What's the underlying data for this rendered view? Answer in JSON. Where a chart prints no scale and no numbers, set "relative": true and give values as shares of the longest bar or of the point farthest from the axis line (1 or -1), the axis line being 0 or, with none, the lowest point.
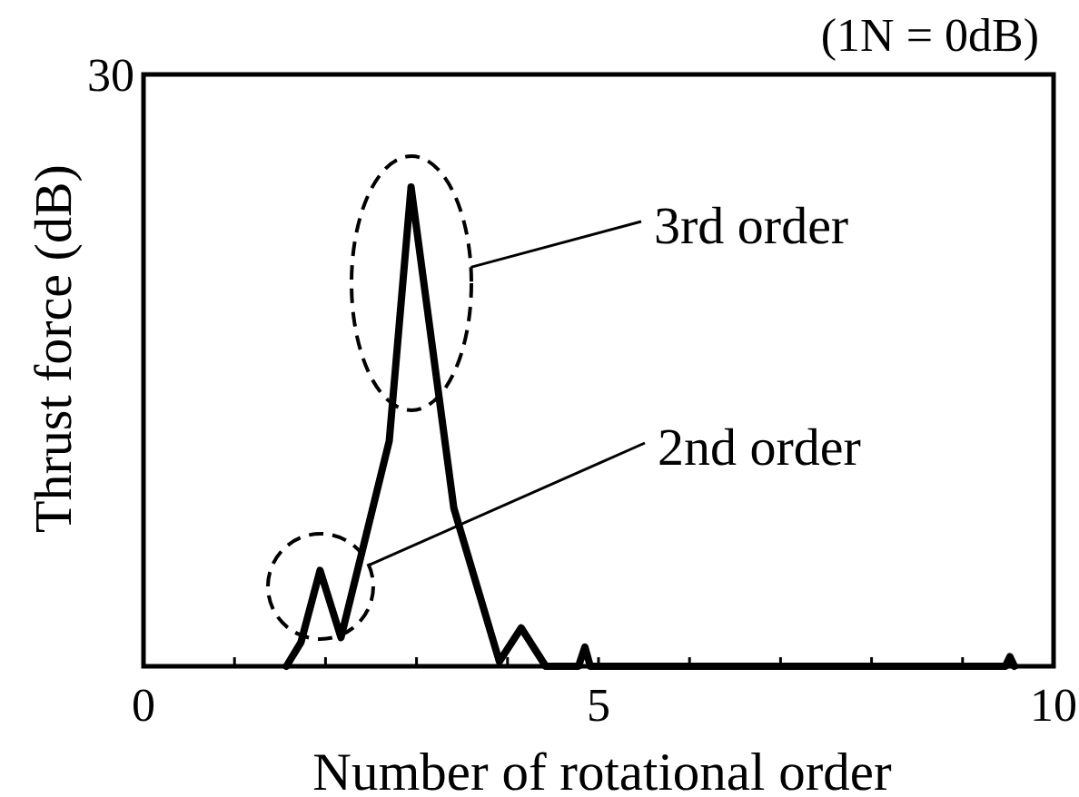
{
  "chart_data": {
    "type": "line",
    "xlabel": "Number of rotational order",
    "ylabel": "Thrust force (dB)",
    "relative": true,
    "x": [
      1.57,
      1.73,
      1.94,
      2.17,
      2.7,
      2.94,
      3.41,
      3.91,
      4.15,
      4.42,
      4.78,
      4.85,
      4.91,
      9.47,
      9.52,
      9.57
    ],
    "values": [
      0,
      0.05,
      0.2,
      0.06,
      0.47,
      1,
      0.33,
      0.01,
      0.08,
      0,
      0,
      0.04,
      0,
      0,
      0.02,
      0
    ],
    "color": "#000000",
    "line_style": "solid",
    "xlim": [
      0,
      10
    ],
    "xticks": [
      0,
      {
        "value": 1,
        "label": null
      },
      {
        "value": 2,
        "label": null
      },
      {
        "value": 3,
        "label": null
      },
      {
        "value": 4,
        "label": null
      },
      5,
      {
        "value": 6,
        "label": null
      },
      {
        "value": 7,
        "label": null
      },
      {
        "value": 8,
        "label": null
      },
      {
        "value": 9,
        "label": null
      },
      10
    ],
    "annotations": [
      "30",
      "(1N = 0dB)",
      "3rd order",
      "2nd order"
    ]
  }
}
